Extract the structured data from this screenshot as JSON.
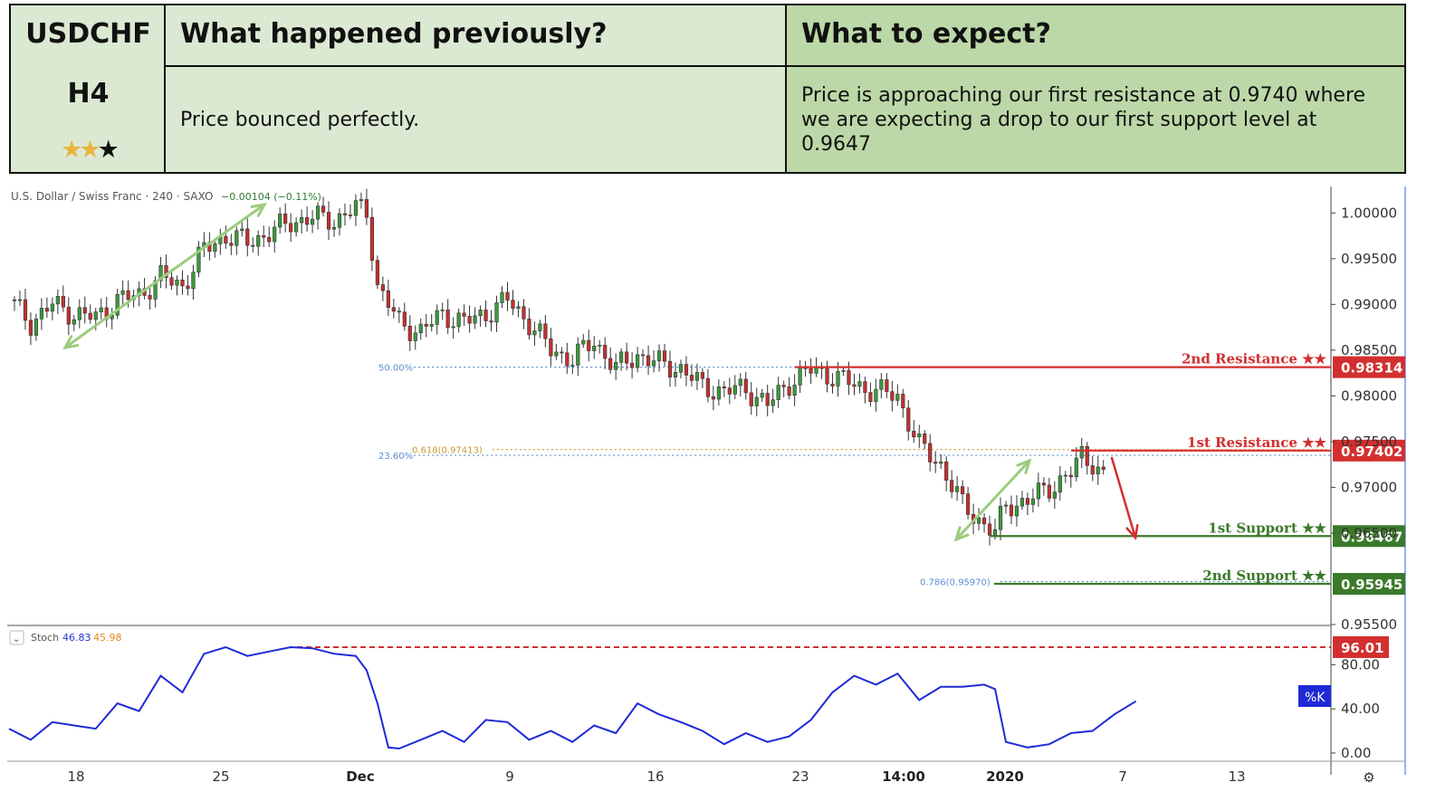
{
  "header": {
    "symbol": "USDCHF",
    "timeframe": "H4",
    "rating_stars": 2,
    "rating_max": 3,
    "prev_title": "What happened previously?",
    "prev_text": "Price bounced perfectly.",
    "expect_title": "What to expect?",
    "expect_text": "Price is approaching our first resistance at 0.9740 where we are expecting a drop to our first support level at 0.9647"
  },
  "chart_data": {
    "type": "candlestick",
    "title": "U.S. Dollar / Swiss Franc · 240 · SAXO",
    "change_text": "−0.00104 (−0.11%)",
    "x_labels": [
      "18",
      "25",
      "Dec",
      "9",
      "16",
      "23",
      "14:00",
      "2020",
      "7",
      "13"
    ],
    "ylim": [
      0.955,
      1.0025
    ],
    "y_ticks": [
      "1.00000",
      "0.99500",
      "0.99000",
      "0.98500",
      "0.98000",
      "0.97500",
      "0.97000",
      "0.96500",
      "0.95500"
    ],
    "close_path": [
      [
        0,
        0.9905
      ],
      [
        2,
        0.988
      ],
      [
        4,
        0.99
      ],
      [
        6,
        0.989
      ],
      [
        8,
        0.9885
      ],
      [
        10,
        0.9905
      ],
      [
        12,
        0.991
      ],
      [
        14,
        0.993
      ],
      [
        16,
        0.992
      ],
      [
        18,
        0.996
      ],
      [
        20,
        0.9975
      ],
      [
        22,
        0.9968
      ],
      [
        24,
        0.9978
      ],
      [
        26,
        0.999
      ],
      [
        28,
        0.9995
      ],
      [
        30,
        0.9992
      ],
      [
        32,
        1.0005
      ],
      [
        33,
        1.0002
      ],
      [
        34,
        0.992
      ],
      [
        36,
        0.988
      ],
      [
        38,
        0.987
      ],
      [
        40,
        0.989
      ],
      [
        42,
        0.988
      ],
      [
        44,
        0.989
      ],
      [
        46,
        0.9905
      ],
      [
        48,
        0.988
      ],
      [
        50,
        0.985
      ],
      [
        52,
        0.984
      ],
      [
        54,
        0.986
      ],
      [
        56,
        0.983
      ],
      [
        58,
        0.9845
      ],
      [
        60,
        0.9835
      ],
      [
        62,
        0.983
      ],
      [
        64,
        0.981
      ],
      [
        66,
        0.9805
      ],
      [
        68,
        0.9808
      ],
      [
        70,
        0.979
      ],
      [
        72,
        0.9815
      ],
      [
        74,
        0.9828
      ],
      [
        76,
        0.9822
      ],
      [
        78,
        0.9812
      ],
      [
        80,
        0.9805
      ],
      [
        82,
        0.98
      ],
      [
        84,
        0.9745
      ],
      [
        86,
        0.9725
      ],
      [
        88,
        0.968
      ],
      [
        90,
        0.966
      ],
      [
        91,
        0.965
      ],
      [
        92,
        0.968
      ],
      [
        94,
        0.9685
      ],
      [
        96,
        0.97
      ],
      [
        98,
        0.9715
      ],
      [
        99,
        0.9735
      ],
      [
        100,
        0.9728
      ],
      [
        101,
        0.9712
      ]
    ],
    "fib_levels": [
      {
        "label": "50.00%",
        "value": 0.98314
      },
      {
        "label": "23.60%",
        "value": 0.9735
      },
      {
        "label": "0.618(0.97413)",
        "value": 0.97413
      },
      {
        "label": "0.786(0.95970)",
        "value": 0.9597
      }
    ],
    "levels": [
      {
        "name": "2nd Resistance ★★",
        "value": 0.98314,
        "label": "0.98314",
        "color": "#d32f2f"
      },
      {
        "name": "1st Resistance ★★",
        "value": 0.97402,
        "label": "0.97402",
        "color": "#d32f2f"
      },
      {
        "name": "1st Support ★★",
        "value": 0.96467,
        "label": "0.96467",
        "color": "#3b7a2a"
      },
      {
        "name": "2nd Support ★★",
        "value": 0.95945,
        "label": "0.95945",
        "color": "#3b7a2a"
      }
    ],
    "stoch": {
      "label": "Stoch",
      "k_value": "46.83",
      "d_value": "45.98",
      "level": 96.01,
      "level_label": "96.01",
      "k_tag": "%K",
      "ylim": [
        -5,
        105
      ],
      "y_ticks": [
        "80.00",
        "40.00",
        "0.00"
      ],
      "k_path": [
        [
          0,
          22
        ],
        [
          2,
          12
        ],
        [
          4,
          28
        ],
        [
          6,
          25
        ],
        [
          8,
          22
        ],
        [
          10,
          45
        ],
        [
          12,
          38
        ],
        [
          14,
          70
        ],
        [
          16,
          55
        ],
        [
          18,
          90
        ],
        [
          20,
          96
        ],
        [
          22,
          88
        ],
        [
          24,
          92
        ],
        [
          26,
          96
        ],
        [
          28,
          95
        ],
        [
          30,
          90
        ],
        [
          32,
          88
        ],
        [
          33,
          75
        ],
        [
          34,
          45
        ],
        [
          35,
          5
        ],
        [
          36,
          4
        ],
        [
          38,
          12
        ],
        [
          40,
          20
        ],
        [
          42,
          10
        ],
        [
          44,
          30
        ],
        [
          46,
          28
        ],
        [
          48,
          12
        ],
        [
          50,
          20
        ],
        [
          52,
          10
        ],
        [
          54,
          25
        ],
        [
          56,
          18
        ],
        [
          58,
          45
        ],
        [
          60,
          35
        ],
        [
          62,
          28
        ],
        [
          64,
          20
        ],
        [
          66,
          8
        ],
        [
          68,
          18
        ],
        [
          70,
          10
        ],
        [
          72,
          15
        ],
        [
          74,
          30
        ],
        [
          76,
          55
        ],
        [
          78,
          70
        ],
        [
          80,
          62
        ],
        [
          82,
          72
        ],
        [
          84,
          48
        ],
        [
          86,
          60
        ],
        [
          88,
          60
        ],
        [
          90,
          62
        ],
        [
          91,
          58
        ],
        [
          92,
          10
        ],
        [
          94,
          5
        ],
        [
          96,
          8
        ],
        [
          98,
          18
        ],
        [
          100,
          20
        ],
        [
          102,
          35
        ],
        [
          104,
          47
        ]
      ]
    }
  }
}
